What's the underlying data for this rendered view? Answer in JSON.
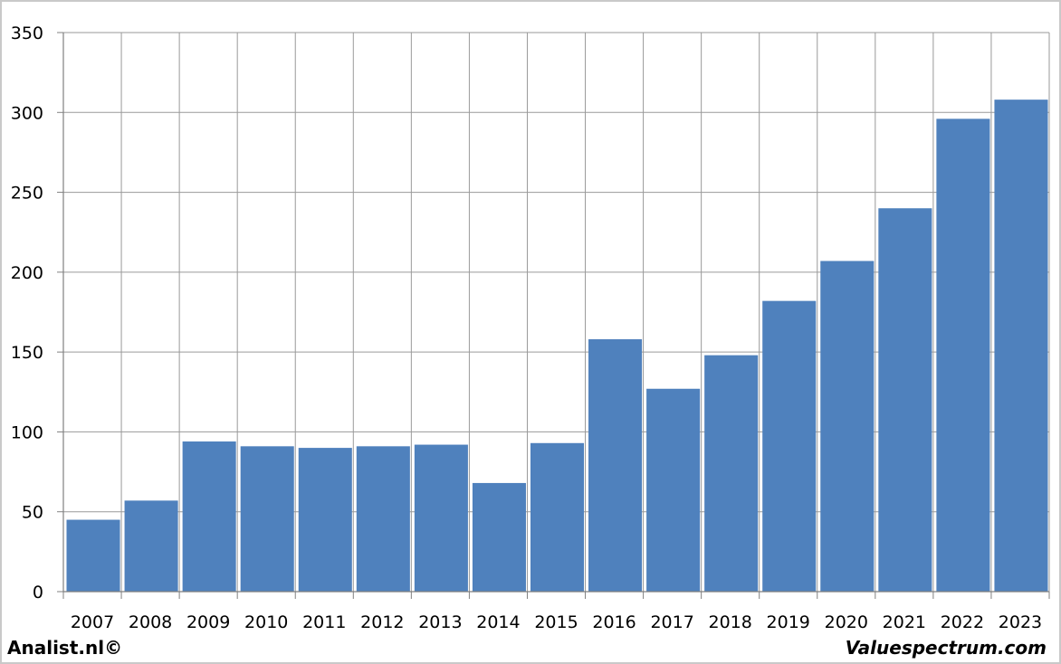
{
  "chart_data": {
    "type": "bar",
    "categories": [
      "2007",
      "2008",
      "2009",
      "2010",
      "2011",
      "2012",
      "2013",
      "2014",
      "2015",
      "2016",
      "2017",
      "2018",
      "2019",
      "2020",
      "2021",
      "2022",
      "2023"
    ],
    "values": [
      45,
      57,
      94,
      91,
      90,
      91,
      92,
      68,
      93,
      158,
      127,
      148,
      182,
      207,
      240,
      296,
      308
    ],
    "ylim": [
      0,
      350
    ],
    "yticks": [
      0,
      50,
      100,
      150,
      200,
      250,
      300,
      350
    ],
    "grid": true,
    "bar_color": "#4f81bd",
    "grid_color": "#9a9a9a",
    "title": "",
    "xlabel": "",
    "ylabel": ""
  },
  "credits": {
    "left": "Analist.nl©",
    "right": "Valuespectrum.com"
  }
}
